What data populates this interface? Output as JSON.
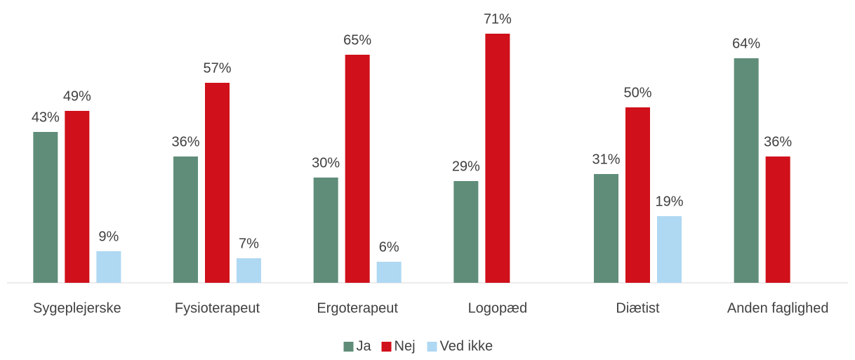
{
  "chart_data": {
    "type": "bar",
    "categories": [
      "Sygeplejerske",
      "Fysioterapeut",
      "Ergoterapeut",
      "Logopæd",
      "Diætist",
      "Anden faglighed"
    ],
    "series": [
      {
        "name": "Ja",
        "color": "#5f8d79",
        "values": [
          43,
          36,
          30,
          29,
          31,
          64
        ],
        "value_labels": [
          "43%",
          "36%",
          "30%",
          "29%",
          "31%",
          "64%"
        ]
      },
      {
        "name": "Nej",
        "color": "#d0101a",
        "values": [
          49,
          57,
          65,
          71,
          50,
          36
        ],
        "value_labels": [
          "49%",
          "57%",
          "65%",
          "71%",
          "50%",
          "36%"
        ]
      },
      {
        "name": "Ved ikke",
        "color": "#afd8f2",
        "values": [
          9,
          7,
          6,
          null,
          19,
          null
        ],
        "value_labels": [
          "9%",
          "7%",
          "6%",
          null,
          "19%",
          null
        ]
      }
    ],
    "legend": "bottom"
  }
}
